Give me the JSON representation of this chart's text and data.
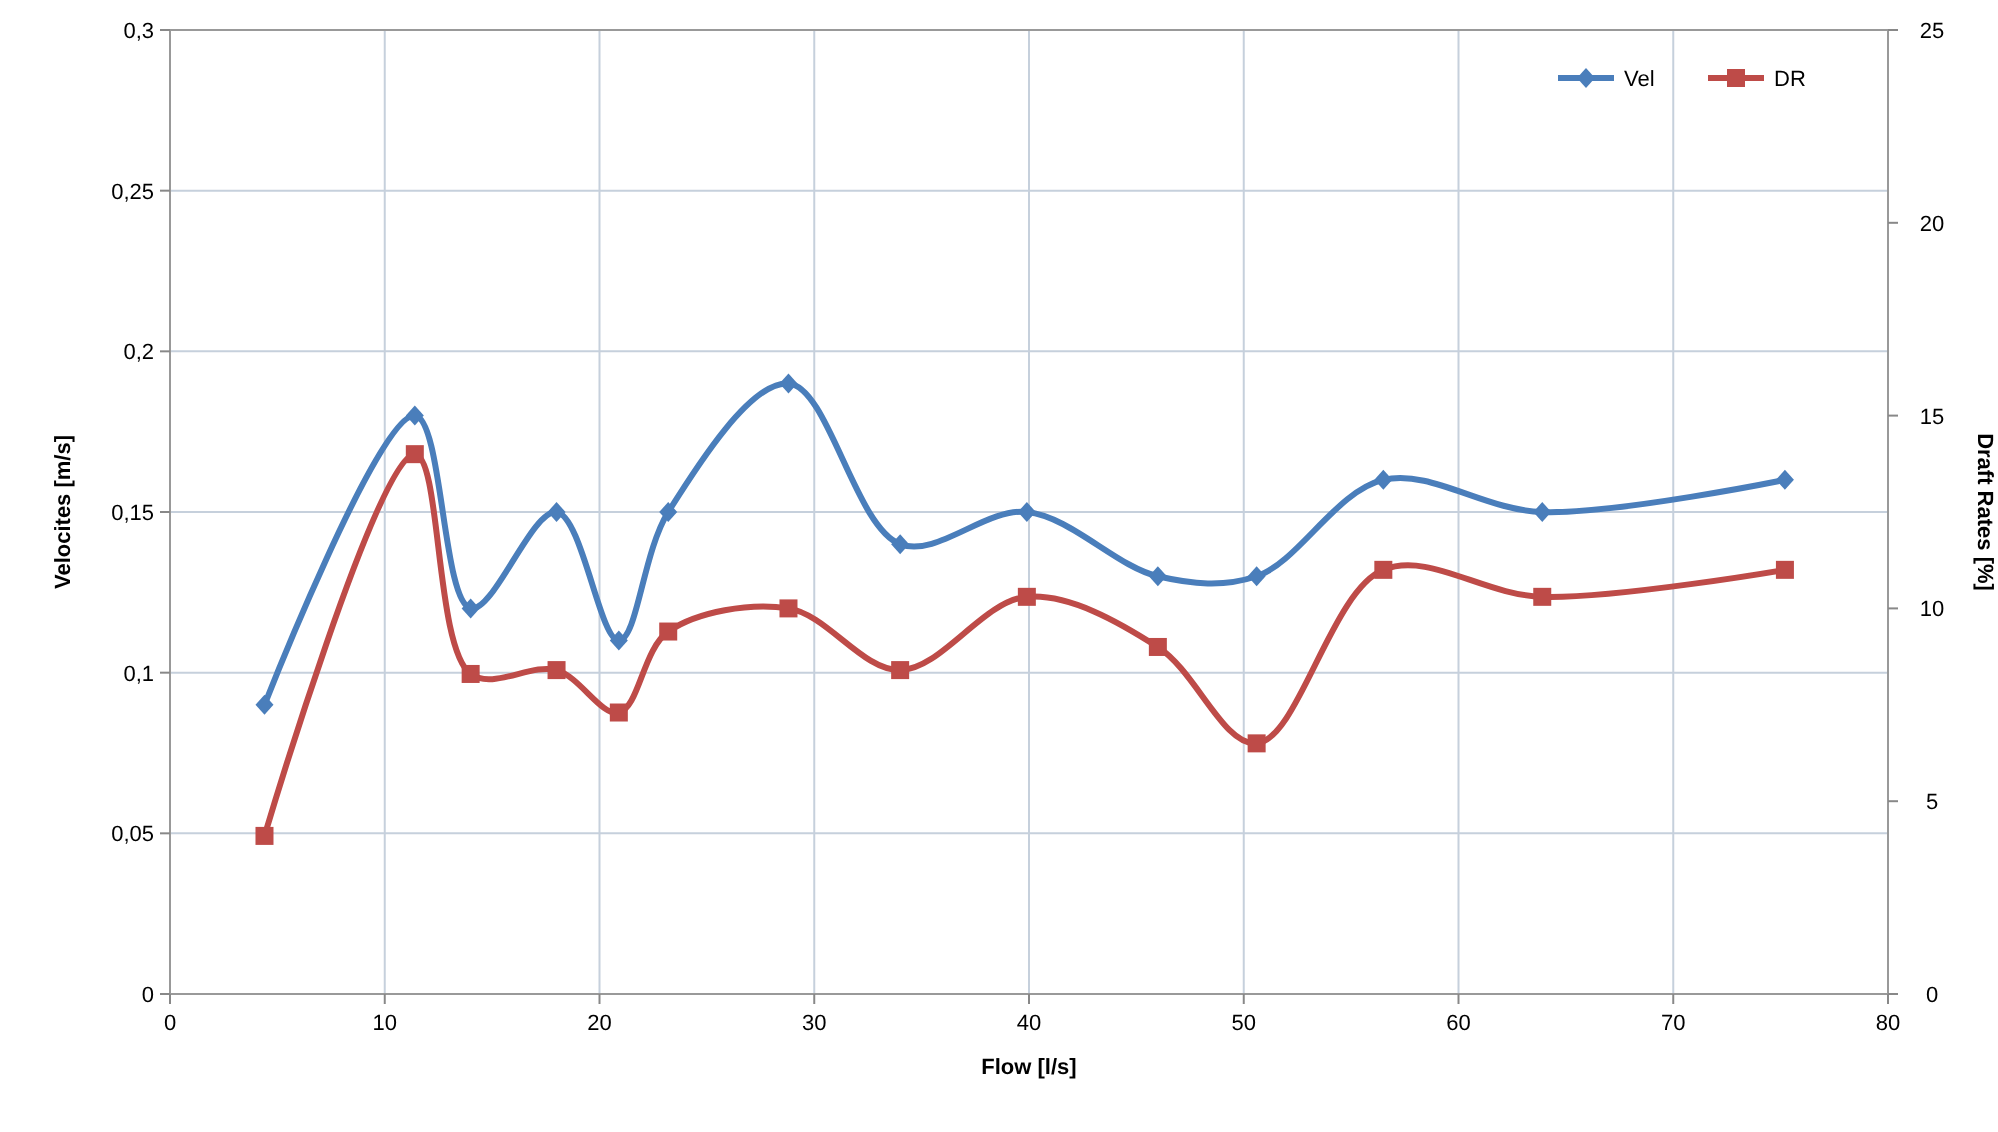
{
  "chart_data": {
    "type": "line",
    "xlabel": "Flow [l/s]",
    "ylabel": "Velocites [m/s]",
    "y2label": "Draft Rates [%]",
    "xlim": [
      0,
      80
    ],
    "xticks": [
      0,
      10,
      20,
      30,
      40,
      50,
      60,
      70,
      80
    ],
    "ylim": [
      0,
      0.3
    ],
    "yticks": [
      {
        "value": 0,
        "label": "0"
      },
      {
        "value": 0.05,
        "label": "0,05"
      },
      {
        "value": 0.1,
        "label": "0,1"
      },
      {
        "value": 0.15,
        "label": "0,15"
      },
      {
        "value": 0.2,
        "label": "0,2"
      },
      {
        "value": 0.25,
        "label": "0,25"
      },
      {
        "value": 0.3,
        "label": "0,3"
      }
    ],
    "y2lim": [
      0,
      25
    ],
    "y2ticks": [
      0,
      5,
      10,
      15,
      20,
      25
    ],
    "grid": true,
    "legend": "top right",
    "line_style": "solid",
    "x": [
      4.4,
      11.4,
      14.0,
      18.0,
      20.9,
      23.2,
      28.8,
      34.0,
      39.9,
      46.0,
      50.6,
      56.5,
      63.9,
      75.2
    ],
    "series": [
      {
        "name": "Vel",
        "color": "#4a7ebb",
        "marker": "diamond",
        "values": [
          0.09,
          0.18,
          0.12,
          0.15,
          0.11,
          0.15,
          0.19,
          0.14,
          0.15,
          0.13,
          0.13,
          0.16,
          0.15,
          0.16
        ]
      },
      {
        "name": "DR",
        "color": "#be4b48",
        "marker": "square",
        "axis": "y2",
        "values": [
          4.1,
          14.0,
          8.3,
          8.4,
          7.3,
          9.4,
          10.0,
          8.4,
          10.3,
          9.0,
          6.5,
          11.0,
          10.3,
          11.0
        ]
      }
    ]
  }
}
